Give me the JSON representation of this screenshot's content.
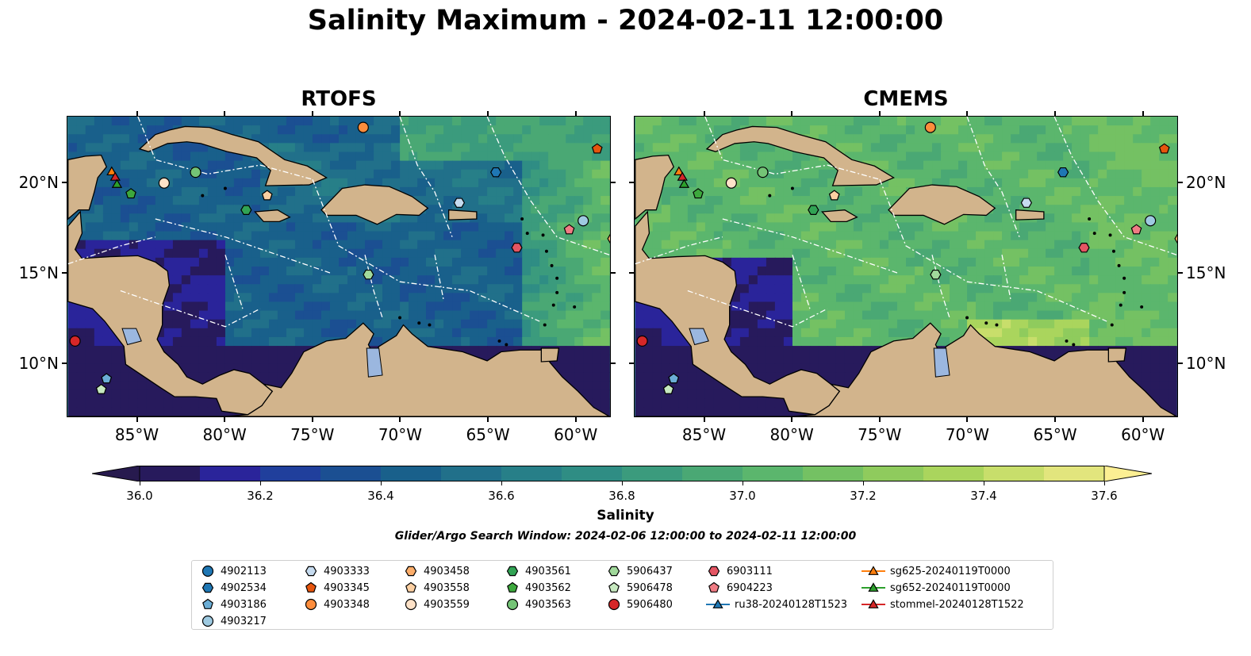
{
  "figure": {
    "title": "Salinity Maximum - 2024-02-11 12:00:00"
  },
  "chart_data": [
    {
      "type": "heatmap",
      "title": "RTOFS",
      "x_ticks": [
        "85°W",
        "80°W",
        "75°W",
        "70°W",
        "65°W",
        "60°W"
      ],
      "x_tick_values": [
        -85,
        -80,
        -75,
        -70,
        -65,
        -60
      ],
      "y_ticks": [
        "20°N",
        "15°N",
        "10°N"
      ],
      "y_tick_values": [
        20,
        15,
        10
      ],
      "xlim": [
        -89,
        -58
      ],
      "ylim": [
        7,
        23.7
      ],
      "tick_label_side": "left",
      "dominant_field": "36.2–36.6 over most of the Caribbean; 36.0–36.1 near Central America and Pacific; 37.0–37.4 near Lesser Antilles",
      "markers": [
        {
          "name": "4903348",
          "lon": -72.1,
          "lat": 23.1
        },
        {
          "name": "4903345",
          "lon": -58.7,
          "lat": 21.9
        },
        {
          "name": "4902534",
          "lon": -64.5,
          "lat": 20.6
        },
        {
          "name": "4903563",
          "lon": -81.7,
          "lat": 20.6
        },
        {
          "name": "4903559",
          "lon": -83.5,
          "lat": 20.0
        },
        {
          "name": "4903562",
          "lon": -85.4,
          "lat": 19.4
        },
        {
          "name": "4903558",
          "lon": -77.6,
          "lat": 19.3
        },
        {
          "name": "4903561",
          "lon": -78.8,
          "lat": 18.5
        },
        {
          "name": "4903333",
          "lon": -66.6,
          "lat": 18.9
        },
        {
          "name": "4903217",
          "lon": -59.5,
          "lat": 17.9
        },
        {
          "name": "6904223",
          "lon": -60.3,
          "lat": 17.4
        },
        {
          "name": "4903458",
          "lon": -57.8,
          "lat": 16.9
        },
        {
          "name": "6903111",
          "lon": -63.3,
          "lat": 16.4
        },
        {
          "name": "5906437",
          "lon": -71.8,
          "lat": 14.9
        },
        {
          "name": "5906480",
          "lon": -88.6,
          "lat": 11.2
        },
        {
          "name": "4903186",
          "lon": -86.8,
          "lat": 9.1
        },
        {
          "name": "5906478",
          "lon": -87.1,
          "lat": 8.5
        },
        {
          "name": "sg625-20240119T0000",
          "lon": -86.5,
          "lat": 20.6
        },
        {
          "name": "stommel-20240128T1522",
          "lon": -86.3,
          "lat": 20.3
        },
        {
          "name": "sg652-20240119T0000",
          "lon": -86.2,
          "lat": 19.9
        }
      ]
    },
    {
      "type": "heatmap",
      "title": "CMEMS",
      "x_ticks": [
        "85°W",
        "80°W",
        "75°W",
        "70°W",
        "65°W",
        "60°W"
      ],
      "x_tick_values": [
        -85,
        -80,
        -75,
        -70,
        -65,
        -60
      ],
      "y_ticks": [
        "20°N",
        "15°N",
        "10°N"
      ],
      "y_tick_values": [
        20,
        15,
        10
      ],
      "xlim": [
        -89,
        -58
      ],
      "ylim": [
        7,
        23.7
      ],
      "tick_label_side": "right",
      "dominant_field": "36.9–37.2 over most of the Caribbean; 36.0 near Central America and Pacific; 37.4–37.6 near Venezuela coast and NE corner",
      "markers": [
        {
          "name": "4903348",
          "lon": -72.1,
          "lat": 23.1
        },
        {
          "name": "4903345",
          "lon": -58.7,
          "lat": 21.9
        },
        {
          "name": "4902534",
          "lon": -64.5,
          "lat": 20.6
        },
        {
          "name": "4903563",
          "lon": -81.7,
          "lat": 20.6
        },
        {
          "name": "4903559",
          "lon": -83.5,
          "lat": 20.0
        },
        {
          "name": "4903562",
          "lon": -85.4,
          "lat": 19.4
        },
        {
          "name": "4903558",
          "lon": -77.6,
          "lat": 19.3
        },
        {
          "name": "4903561",
          "lon": -78.8,
          "lat": 18.5
        },
        {
          "name": "4903333",
          "lon": -66.6,
          "lat": 18.9
        },
        {
          "name": "4903217",
          "lon": -59.5,
          "lat": 17.9
        },
        {
          "name": "6904223",
          "lon": -60.3,
          "lat": 17.4
        },
        {
          "name": "4903458",
          "lon": -57.8,
          "lat": 16.9
        },
        {
          "name": "6903111",
          "lon": -63.3,
          "lat": 16.4
        },
        {
          "name": "5906437",
          "lon": -71.8,
          "lat": 14.9
        },
        {
          "name": "5906480",
          "lon": -88.6,
          "lat": 11.2
        },
        {
          "name": "4903186",
          "lon": -86.8,
          "lat": 9.1
        },
        {
          "name": "5906478",
          "lon": -87.1,
          "lat": 8.5
        },
        {
          "name": "sg625-20240119T0000",
          "lon": -86.5,
          "lat": 20.6
        },
        {
          "name": "stommel-20240128T1522",
          "lon": -86.3,
          "lat": 20.3
        },
        {
          "name": "sg652-20240119T0000",
          "lon": -86.2,
          "lat": 19.9
        }
      ]
    }
  ],
  "colorbar": {
    "label": "Salinity",
    "min": 36.0,
    "max": 37.6,
    "step": 0.1,
    "extend": "both",
    "ticks": [
      "36.0",
      "36.2",
      "36.4",
      "36.6",
      "36.8",
      "37.0",
      "37.2",
      "37.4",
      "37.6"
    ],
    "tick_values": [
      36.0,
      36.2,
      36.4,
      36.6,
      36.8,
      37.0,
      37.2,
      37.4,
      37.6
    ],
    "colors": [
      "#271a5c",
      "#2a249a",
      "#203f9c",
      "#1b4f92",
      "#19608b",
      "#21708a",
      "#277f88",
      "#2f8d84",
      "#3b9b7d",
      "#4aa874",
      "#5bb66d",
      "#74c163",
      "#8fcb5d",
      "#aad55d",
      "#c8de6b",
      "#e2e57d",
      "#f9ee8e"
    ],
    "under_color": "#271a4e",
    "over_color": "#fcef93",
    "note": "Glider/Argo Search Window: 2024-02-06 12:00:00 to 2024-02-11 12:00:00"
  },
  "legend": {
    "entries": [
      {
        "label": "4902113",
        "marker": "circle",
        "color": "#1f77b4"
      },
      {
        "label": "4902534",
        "marker": "hexagon",
        "color": "#1f77b4"
      },
      {
        "label": "4903186",
        "marker": "pentagon",
        "color": "#6baed6"
      },
      {
        "label": "4903217",
        "marker": "circle",
        "color": "#9ecae1"
      },
      {
        "label": "4903333",
        "marker": "hexagon",
        "color": "#c6dbef"
      },
      {
        "label": "4903345",
        "marker": "pentagon",
        "color": "#e6550d"
      },
      {
        "label": "4903348",
        "marker": "circle",
        "color": "#fd8d3c"
      },
      {
        "label": "4903458",
        "marker": "hexagon",
        "color": "#fdae6b"
      },
      {
        "label": "4903558",
        "marker": "pentagon",
        "color": "#fdd0a2"
      },
      {
        "label": "4903559",
        "marker": "circle",
        "color": "#fee2c8"
      },
      {
        "label": "4903561",
        "marker": "hexagon",
        "color": "#31a354"
      },
      {
        "label": "4903562",
        "marker": "pentagon",
        "color": "#3da83d"
      },
      {
        "label": "4903563",
        "marker": "circle",
        "color": "#74c476"
      },
      {
        "label": "5906437",
        "marker": "hexagon",
        "color": "#a1d99b"
      },
      {
        "label": "5906478",
        "marker": "pentagon",
        "color": "#c7e9c0"
      },
      {
        "label": "5906480",
        "marker": "circle",
        "color": "#d62728"
      },
      {
        "label": "6903111",
        "marker": "hexagon",
        "color": "#e45563"
      },
      {
        "label": "6904223",
        "marker": "pentagon",
        "color": "#f07c84"
      },
      {
        "label": "ru38-20240128T1523",
        "marker": "triangle-line",
        "color": "#1f77b4"
      },
      {
        "label": "sg625-20240119T0000",
        "marker": "triangle-line",
        "color": "#ff7f0e"
      },
      {
        "label": "sg652-20240119T0000",
        "marker": "triangle-line",
        "color": "#2ca02c"
      },
      {
        "label": "stommel-20240128T1522",
        "marker": "triangle-line",
        "color": "#d62728"
      }
    ]
  }
}
